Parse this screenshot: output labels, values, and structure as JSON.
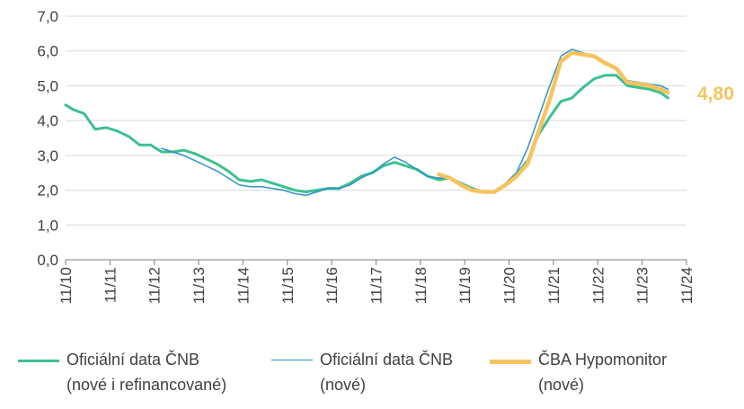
{
  "chart_data": {
    "type": "line",
    "title": "",
    "xlabel": "",
    "ylabel": "",
    "ylim": [
      0,
      7
    ],
    "yticks": [
      "0,0",
      "1,0",
      "2,0",
      "3,0",
      "4,0",
      "5,0",
      "6,0",
      "7,0"
    ],
    "xticks": [
      "11/10",
      "11/11",
      "11/12",
      "11/13",
      "11/14",
      "11/15",
      "11/16",
      "11/17",
      "11/18",
      "11/19",
      "11/20",
      "11/21",
      "11/22",
      "11/23",
      "11/24"
    ],
    "grid": "horizontal",
    "legend": "bottom",
    "end_label": "4,80",
    "colors": {
      "green": "#3cc08f",
      "blue": "#2f93c9",
      "orange": "#f7c35e",
      "grid": "#d9d9d9",
      "axis": "#7f7f7f"
    },
    "series": [
      {
        "name_line1": "Oficiální data ČNB",
        "name_line2": "(nové i refinancované)",
        "color": "#3cc08f",
        "points": [
          [
            "2010-11",
            4.45
          ],
          [
            "2011-01",
            4.32
          ],
          [
            "2011-04",
            4.2
          ],
          [
            "2011-07",
            3.75
          ],
          [
            "2011-10",
            3.8
          ],
          [
            "2012-01",
            3.7
          ],
          [
            "2012-04",
            3.55
          ],
          [
            "2012-07",
            3.3
          ],
          [
            "2012-10",
            3.3
          ],
          [
            "2013-01",
            3.1
          ],
          [
            "2013-04",
            3.1
          ],
          [
            "2013-07",
            3.15
          ],
          [
            "2013-10",
            3.05
          ],
          [
            "2014-01",
            2.9
          ],
          [
            "2014-04",
            2.75
          ],
          [
            "2014-07",
            2.55
          ],
          [
            "2014-10",
            2.3
          ],
          [
            "2015-01",
            2.25
          ],
          [
            "2015-04",
            2.3
          ],
          [
            "2015-07",
            2.2
          ],
          [
            "2015-10",
            2.1
          ],
          [
            "2016-01",
            2.0
          ],
          [
            "2016-04",
            1.95
          ],
          [
            "2016-07",
            2.0
          ],
          [
            "2016-10",
            2.05
          ],
          [
            "2017-01",
            2.05
          ],
          [
            "2017-04",
            2.2
          ],
          [
            "2017-07",
            2.4
          ],
          [
            "2017-10",
            2.5
          ],
          [
            "2018-01",
            2.7
          ],
          [
            "2018-04",
            2.8
          ],
          [
            "2018-07",
            2.7
          ],
          [
            "2018-10",
            2.6
          ],
          [
            "2019-01",
            2.4
          ],
          [
            "2019-04",
            2.3
          ],
          [
            "2019-07",
            2.35
          ],
          [
            "2019-10",
            2.2
          ],
          [
            "2020-01",
            2.05
          ],
          [
            "2020-04",
            1.95
          ],
          [
            "2020-07",
            1.95
          ],
          [
            "2020-10",
            2.15
          ],
          [
            "2021-01",
            2.45
          ],
          [
            "2021-04",
            2.85
          ],
          [
            "2021-07",
            3.6
          ],
          [
            "2021-10",
            4.1
          ],
          [
            "2022-01",
            4.55
          ],
          [
            "2022-04",
            4.65
          ],
          [
            "2022-07",
            4.95
          ],
          [
            "2022-10",
            5.2
          ],
          [
            "2023-01",
            5.3
          ],
          [
            "2023-04",
            5.3
          ],
          [
            "2023-07",
            5.0
          ],
          [
            "2023-10",
            4.95
          ],
          [
            "2024-01",
            4.9
          ],
          [
            "2024-04",
            4.8
          ],
          [
            "2024-06",
            4.65
          ]
        ]
      },
      {
        "name_line1": "Oficiální data ČNB",
        "name_line2": "(nové)",
        "color": "#2f93c9",
        "points": [
          [
            "2013-01",
            3.2
          ],
          [
            "2013-04",
            3.1
          ],
          [
            "2013-07",
            3.0
          ],
          [
            "2013-10",
            2.85
          ],
          [
            "2014-01",
            2.7
          ],
          [
            "2014-04",
            2.55
          ],
          [
            "2014-07",
            2.35
          ],
          [
            "2014-10",
            2.15
          ],
          [
            "2015-01",
            2.1
          ],
          [
            "2015-04",
            2.1
          ],
          [
            "2015-07",
            2.05
          ],
          [
            "2015-10",
            2.0
          ],
          [
            "2016-01",
            1.9
          ],
          [
            "2016-04",
            1.85
          ],
          [
            "2016-07",
            1.95
          ],
          [
            "2016-10",
            2.05
          ],
          [
            "2017-01",
            2.05
          ],
          [
            "2017-04",
            2.15
          ],
          [
            "2017-07",
            2.35
          ],
          [
            "2017-10",
            2.5
          ],
          [
            "2018-01",
            2.75
          ],
          [
            "2018-04",
            2.95
          ],
          [
            "2018-07",
            2.8
          ],
          [
            "2018-10",
            2.6
          ],
          [
            "2019-01",
            2.4
          ],
          [
            "2019-04",
            2.35
          ],
          [
            "2019-07",
            2.35
          ],
          [
            "2019-10",
            2.2
          ],
          [
            "2020-01",
            2.05
          ],
          [
            "2020-04",
            1.95
          ],
          [
            "2020-07",
            1.95
          ],
          [
            "2020-10",
            2.2
          ],
          [
            "2021-01",
            2.5
          ],
          [
            "2021-04",
            3.2
          ],
          [
            "2021-07",
            4.1
          ],
          [
            "2021-10",
            5.0
          ],
          [
            "2022-01",
            5.85
          ],
          [
            "2022-04",
            6.05
          ],
          [
            "2022-07",
            5.95
          ],
          [
            "2022-10",
            5.85
          ],
          [
            "2023-01",
            5.7
          ],
          [
            "2023-04",
            5.5
          ],
          [
            "2023-07",
            5.15
          ],
          [
            "2023-10",
            5.1
          ],
          [
            "2024-01",
            5.05
          ],
          [
            "2024-04",
            5.0
          ],
          [
            "2024-06",
            4.9
          ]
        ]
      },
      {
        "name_line1": "ČBA Hypomonitor",
        "name_line2": "(nové)",
        "color": "#f7c35e",
        "points": [
          [
            "2019-04",
            2.45
          ],
          [
            "2019-07",
            2.35
          ],
          [
            "2019-10",
            2.15
          ],
          [
            "2020-01",
            2.0
          ],
          [
            "2020-04",
            1.95
          ],
          [
            "2020-07",
            1.95
          ],
          [
            "2020-10",
            2.15
          ],
          [
            "2021-01",
            2.4
          ],
          [
            "2021-04",
            2.75
          ],
          [
            "2021-07",
            3.7
          ],
          [
            "2021-10",
            4.6
          ],
          [
            "2022-01",
            5.7
          ],
          [
            "2022-04",
            5.95
          ],
          [
            "2022-07",
            5.9
          ],
          [
            "2022-10",
            5.85
          ],
          [
            "2023-01",
            5.65
          ],
          [
            "2023-04",
            5.5
          ],
          [
            "2023-07",
            5.1
          ],
          [
            "2023-10",
            5.05
          ],
          [
            "2024-01",
            5.0
          ],
          [
            "2024-04",
            4.9
          ],
          [
            "2024-06",
            4.8
          ]
        ]
      }
    ]
  }
}
